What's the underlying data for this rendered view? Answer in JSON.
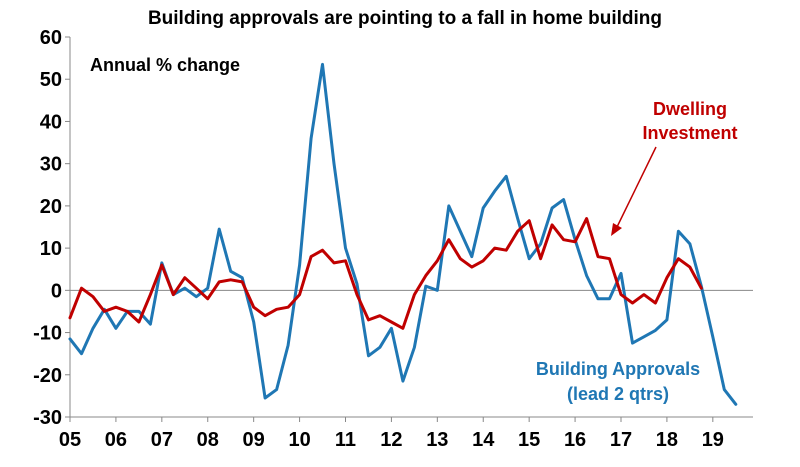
{
  "chart_data": {
    "type": "line",
    "title": "Building approvals are pointing to a fall in home building",
    "ylabel": "",
    "xlabel": "",
    "unit_label": "Annual % change",
    "ylim": [
      -30,
      60
    ],
    "yticks": [
      60,
      50,
      40,
      30,
      20,
      10,
      0,
      -10,
      -20,
      -30
    ],
    "xlim": [
      2005,
      2019.875
    ],
    "xticks": [
      {
        "label": "05",
        "x": 2005
      },
      {
        "label": "06",
        "x": 2006
      },
      {
        "label": "07",
        "x": 2007
      },
      {
        "label": "08",
        "x": 2008
      },
      {
        "label": "09",
        "x": 2009
      },
      {
        "label": "10",
        "x": 2010
      },
      {
        "label": "11",
        "x": 2011
      },
      {
        "label": "12",
        "x": 2012
      },
      {
        "label": "13",
        "x": 2013
      },
      {
        "label": "14",
        "x": 2014
      },
      {
        "label": "15",
        "x": 2015
      },
      {
        "label": "16",
        "x": 2016
      },
      {
        "label": "17",
        "x": 2017
      },
      {
        "label": "18",
        "x": 2018
      },
      {
        "label": "19",
        "x": 2019
      }
    ],
    "grid": false,
    "legend": "none",
    "series": [
      {
        "name": "Building Approvals",
        "name_line2": "(lead 2 qtrs)",
        "color": "#1f77b4",
        "x": [
          2005,
          2005.25,
          2005.5,
          2005.75,
          2006,
          2006.25,
          2006.5,
          2006.75,
          2007,
          2007.25,
          2007.5,
          2007.75,
          2008,
          2008.25,
          2008.5,
          2008.75,
          2009,
          2009.25,
          2009.5,
          2009.75,
          2010,
          2010.25,
          2010.5,
          2010.75,
          2011,
          2011.25,
          2011.5,
          2011.75,
          2012,
          2012.25,
          2012.5,
          2012.75,
          2013,
          2013.25,
          2013.5,
          2013.75,
          2014,
          2014.25,
          2014.5,
          2014.75,
          2015,
          2015.25,
          2015.5,
          2015.75,
          2016,
          2016.25,
          2016.5,
          2016.75,
          2017,
          2017.25,
          2017.5,
          2017.75,
          2018,
          2018.25,
          2018.5,
          2018.75,
          2019,
          2019.25,
          2019.5
        ],
        "values": [
          -11.5,
          -15,
          -9,
          -4.5,
          -9,
          -5,
          -5,
          -8,
          6.5,
          -1,
          0.5,
          -1.5,
          0.5,
          14.5,
          4.5,
          3,
          -7.5,
          -25.5,
          -23.5,
          -13,
          6,
          36,
          53.5,
          30,
          10,
          1.5,
          -15.5,
          -13.5,
          -9,
          -21.5,
          -13.5,
          1,
          0,
          20,
          14,
          8,
          19.5,
          23.5,
          27,
          17,
          7.5,
          11,
          19.5,
          21.5,
          12,
          3.5,
          -2,
          -2,
          4,
          -12.5,
          -11,
          -9.5,
          -7,
          14,
          11,
          1,
          -11,
          -23.5,
          -27
        ]
      },
      {
        "name": "Dwelling",
        "name_line2": "Investment",
        "color": "#c00000",
        "x": [
          2005,
          2005.25,
          2005.5,
          2005.75,
          2006,
          2006.25,
          2006.5,
          2006.75,
          2007,
          2007.25,
          2007.5,
          2007.75,
          2008,
          2008.25,
          2008.5,
          2008.75,
          2009,
          2009.25,
          2009.5,
          2009.75,
          2010,
          2010.25,
          2010.5,
          2010.75,
          2011,
          2011.25,
          2011.5,
          2011.75,
          2012,
          2012.25,
          2012.5,
          2012.75,
          2013,
          2013.25,
          2013.5,
          2013.75,
          2014,
          2014.25,
          2014.5,
          2014.75,
          2015,
          2015.25,
          2015.5,
          2015.75,
          2016,
          2016.25,
          2016.5,
          2016.75,
          2017,
          2017.25,
          2017.5,
          2017.75,
          2018,
          2018.25,
          2018.5,
          2018.75
        ],
        "values": [
          -6.5,
          0.5,
          -1.5,
          -5,
          -4,
          -5,
          -7.5,
          -1,
          6,
          -1,
          3,
          0.5,
          -2,
          2,
          2.5,
          2,
          -4,
          -6,
          -4.5,
          -4,
          -1,
          8,
          9.5,
          6.5,
          7,
          -1,
          -7,
          -6,
          -7.5,
          -9,
          -1,
          3.5,
          7,
          12,
          7.5,
          5.5,
          7,
          10,
          9.5,
          14,
          16.5,
          7.5,
          15.5,
          12,
          11.5,
          17,
          8,
          7.5,
          -1,
          -3,
          -1,
          -3,
          3,
          7.5,
          5.5,
          0.5
        ]
      }
    ]
  }
}
